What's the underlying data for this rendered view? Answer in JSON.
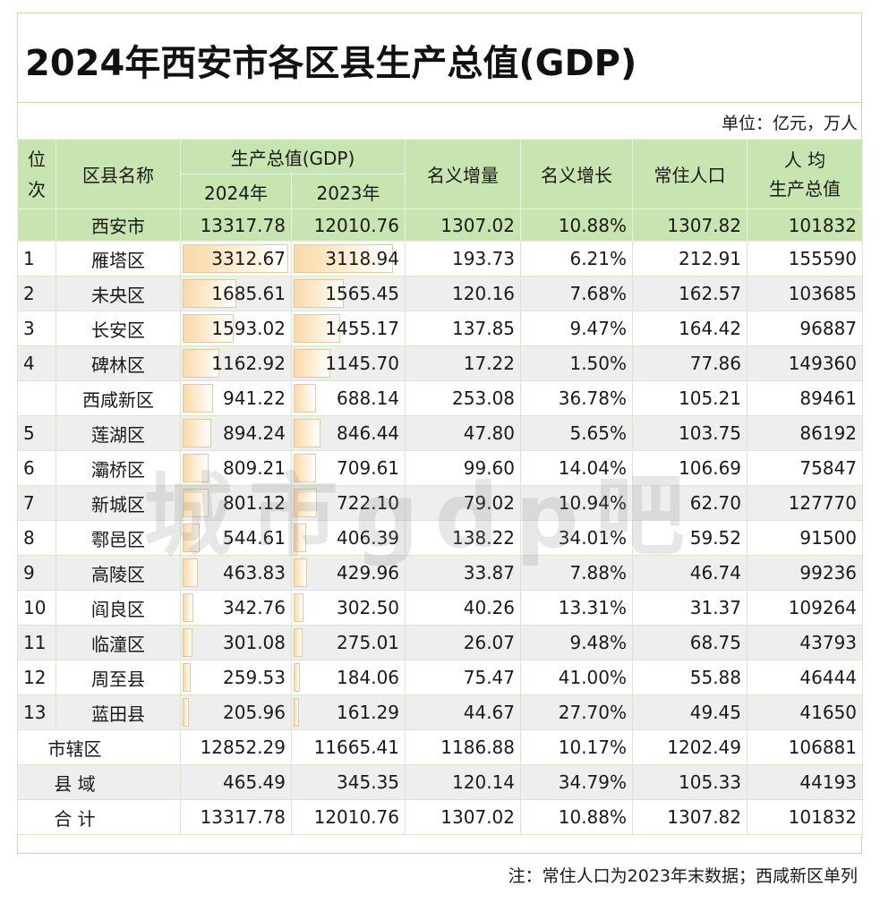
{
  "title": "2024年西安市各区县生产总值(GDP)",
  "unit": "单位：亿元，万人",
  "headers": {
    "rank": "位次",
    "name": "区县名称",
    "gdp": "生产总值(GDP)",
    "y2024": "2024年",
    "y2023": "2023年",
    "increase": "名义增量",
    "growth": "名义增长",
    "population": "常住人口",
    "per_capita_line1": "人 均",
    "per_capita_line2": "生产总值"
  },
  "city_row": {
    "name": "西安市",
    "gdp2024": "13317.78",
    "gdp2023": "12010.76",
    "increase": "1307.02",
    "growth": "10.88%",
    "population": "1307.82",
    "per_capita": "101832"
  },
  "rows": [
    {
      "rank": "1",
      "name": "雁塔区",
      "gdp2024": "3312.67",
      "gdp2023": "3118.94",
      "increase": "193.73",
      "growth": "6.21%",
      "population": "212.91",
      "per_capita": "155590"
    },
    {
      "rank": "2",
      "name": "未央区",
      "gdp2024": "1685.61",
      "gdp2023": "1565.45",
      "increase": "120.16",
      "growth": "7.68%",
      "population": "162.57",
      "per_capita": "103685"
    },
    {
      "rank": "3",
      "name": "长安区",
      "gdp2024": "1593.02",
      "gdp2023": "1455.17",
      "increase": "137.85",
      "growth": "9.47%",
      "population": "164.42",
      "per_capita": "96887"
    },
    {
      "rank": "4",
      "name": "碑林区",
      "gdp2024": "1162.92",
      "gdp2023": "1145.70",
      "increase": "17.22",
      "growth": "1.50%",
      "population": "77.86",
      "per_capita": "149360"
    },
    {
      "rank": "",
      "name": "西咸新区",
      "gdp2024": "941.22",
      "gdp2023": "688.14",
      "increase": "253.08",
      "growth": "36.78%",
      "population": "105.21",
      "per_capita": "89461"
    },
    {
      "rank": "5",
      "name": "莲湖区",
      "gdp2024": "894.24",
      "gdp2023": "846.44",
      "increase": "47.80",
      "growth": "5.65%",
      "population": "103.75",
      "per_capita": "86192"
    },
    {
      "rank": "6",
      "name": "灞桥区",
      "gdp2024": "809.21",
      "gdp2023": "709.61",
      "increase": "99.60",
      "growth": "14.04%",
      "population": "106.69",
      "per_capita": "75847"
    },
    {
      "rank": "7",
      "name": "新城区",
      "gdp2024": "801.12",
      "gdp2023": "722.10",
      "increase": "79.02",
      "growth": "10.94%",
      "population": "62.70",
      "per_capita": "127770"
    },
    {
      "rank": "8",
      "name": "鄠邑区",
      "gdp2024": "544.61",
      "gdp2023": "406.39",
      "increase": "138.22",
      "growth": "34.01%",
      "population": "59.52",
      "per_capita": "91500"
    },
    {
      "rank": "9",
      "name": "高陵区",
      "gdp2024": "463.83",
      "gdp2023": "429.96",
      "increase": "33.87",
      "growth": "7.88%",
      "population": "46.74",
      "per_capita": "99236"
    },
    {
      "rank": "10",
      "name": "阎良区",
      "gdp2024": "342.76",
      "gdp2023": "302.50",
      "increase": "40.26",
      "growth": "13.31%",
      "population": "31.37",
      "per_capita": "109264"
    },
    {
      "rank": "11",
      "name": "临潼区",
      "gdp2024": "301.08",
      "gdp2023": "275.01",
      "increase": "26.07",
      "growth": "9.48%",
      "population": "68.75",
      "per_capita": "43793"
    },
    {
      "rank": "12",
      "name": "周至县",
      "gdp2024": "259.53",
      "gdp2023": "184.06",
      "increase": "75.47",
      "growth": "41.00%",
      "population": "55.88",
      "per_capita": "46444"
    },
    {
      "rank": "13",
      "name": "蓝田县",
      "gdp2024": "205.96",
      "gdp2023": "161.29",
      "increase": "44.67",
      "growth": "27.70%",
      "population": "49.45",
      "per_capita": "41650"
    }
  ],
  "summary": [
    {
      "name": "市辖区",
      "gdp2024": "12852.29",
      "gdp2023": "11665.41",
      "increase": "1186.88",
      "growth": "10.17%",
      "population": "1202.49",
      "per_capita": "106881"
    },
    {
      "name": "县 域",
      "gdp2024": "465.49",
      "gdp2023": "345.35",
      "increase": "120.14",
      "growth": "34.79%",
      "population": "105.33",
      "per_capita": "44193"
    },
    {
      "name": "合 计",
      "gdp2024": "13317.78",
      "gdp2023": "12010.76",
      "increase": "1307.02",
      "growth": "10.88%",
      "population": "1307.82",
      "per_capita": "101832"
    }
  ],
  "watermark": "城市gdp吧",
  "note": "注：常住人口为2023年末数据；西咸新区单列",
  "colors": {
    "header_bg": "#c8e4b1",
    "alt_row": "#eeeeee",
    "bar_fill": "#f9d9a8",
    "frame": "#c5dcb2"
  }
}
